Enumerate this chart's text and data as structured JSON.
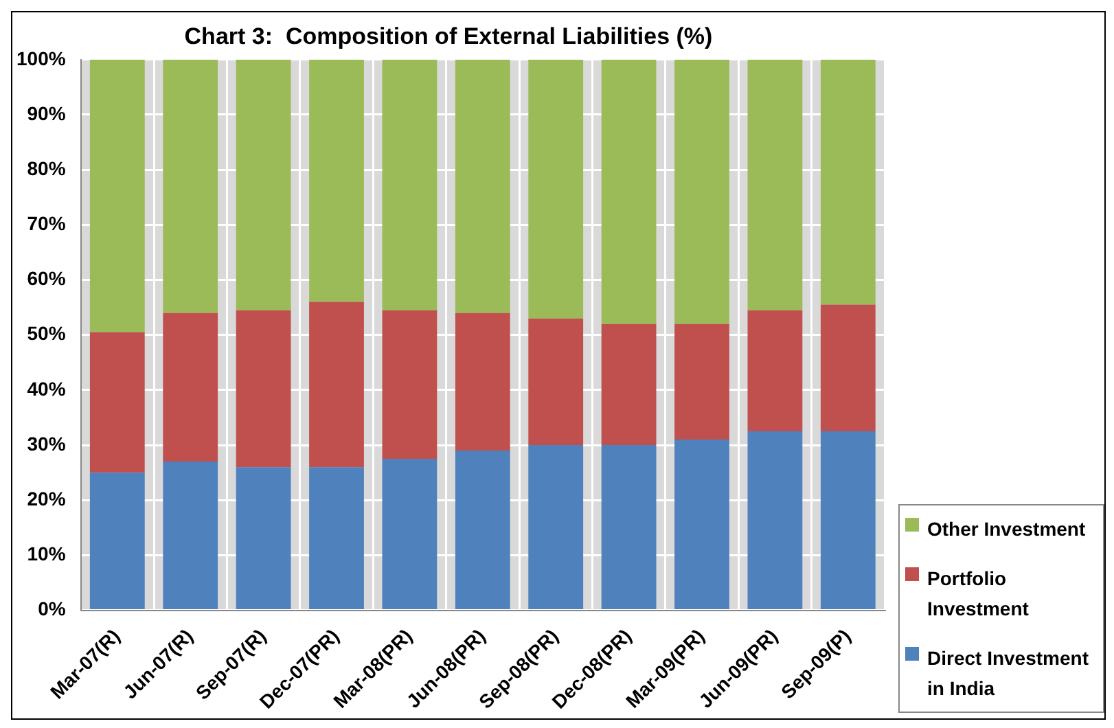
{
  "chart_data": {
    "type": "bar",
    "title": "Chart 3:  Composition of External Liabilities (%)",
    "stacked": true,
    "categories": [
      "Mar-07(R)",
      "Jun-07(R)",
      "Sep-07(R)",
      "Dec-07(PR)",
      "Mar-08(PR)",
      "Jun-08(PR)",
      "Sep-08(PR)",
      "Dec-08(PR)",
      "Mar-09(PR)",
      "Jun-09(PR)",
      "Sep-09(P)"
    ],
    "series": [
      {
        "name": "Direct Investment in India",
        "color": "#4f81bd",
        "values": [
          25,
          27,
          26,
          26,
          27.5,
          29,
          30,
          30,
          31,
          32.5,
          32.5
        ]
      },
      {
        "name": "Portfolio Investment",
        "color": "#c0504d",
        "values": [
          25.5,
          27,
          28.5,
          30,
          27,
          25,
          23,
          22,
          21,
          22,
          23
        ]
      },
      {
        "name": "Other Investment",
        "color": "#9bbb59",
        "values": [
          49.5,
          46,
          45.5,
          44,
          45.5,
          46,
          47,
          48,
          48,
          45.5,
          44.5
        ]
      }
    ],
    "ylim": [
      0,
      100
    ],
    "yticks": [
      {
        "value": 0,
        "label": "0%"
      },
      {
        "value": 10,
        "label": "10%"
      },
      {
        "value": 20,
        "label": "20%"
      },
      {
        "value": 30,
        "label": "30%"
      },
      {
        "value": 40,
        "label": "40%"
      },
      {
        "value": 50,
        "label": "50%"
      },
      {
        "value": 60,
        "label": "60%"
      },
      {
        "value": 70,
        "label": "70%"
      },
      {
        "value": 80,
        "label": "80%"
      },
      {
        "value": 90,
        "label": "90%"
      },
      {
        "value": 100,
        "label": "100%"
      }
    ],
    "grid": true,
    "legend": "right"
  }
}
